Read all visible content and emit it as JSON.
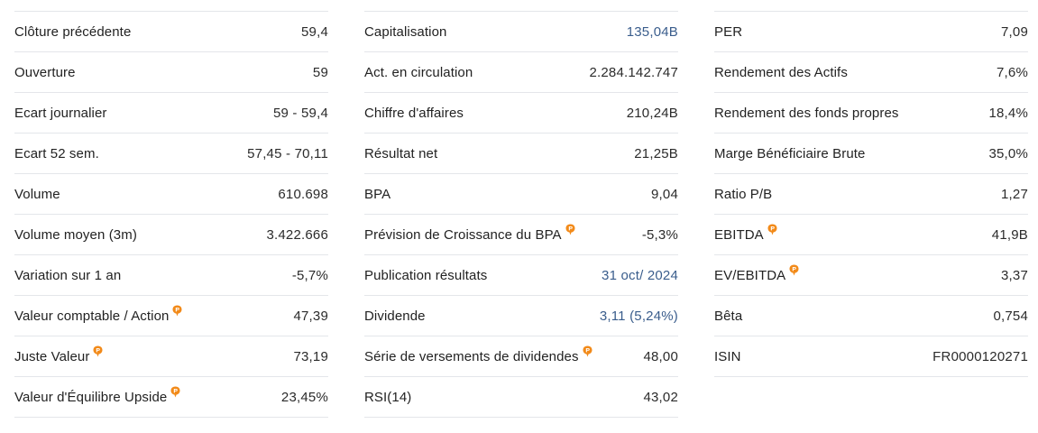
{
  "colors": {
    "pro_icon": "#f28a19",
    "link": "#3a5d8c",
    "divider": "#e4e6ea"
  },
  "columns": [
    {
      "rows": [
        {
          "label": "Clôture précédente",
          "value": "59,4",
          "pro": false,
          "link": false
        },
        {
          "label": "Ouverture",
          "value": "59",
          "pro": false,
          "link": false
        },
        {
          "label": "Ecart journalier",
          "value": "59 - 59,4",
          "pro": false,
          "link": false
        },
        {
          "label": "Ecart 52 sem.",
          "value": "57,45 - 70,11",
          "pro": false,
          "link": false
        },
        {
          "label": "Volume",
          "value": "610.698",
          "pro": false,
          "link": false
        },
        {
          "label": "Volume moyen (3m)",
          "value": "3.422.666",
          "pro": false,
          "link": false
        },
        {
          "label": "Variation sur 1 an",
          "value": "-5,7%",
          "pro": false,
          "link": false
        },
        {
          "label": "Valeur comptable / Action",
          "value": "47,39",
          "pro": true,
          "link": false
        },
        {
          "label": "Juste Valeur",
          "value": "73,19",
          "pro": true,
          "link": false
        },
        {
          "label": "Valeur d'Équilibre Upside",
          "value": "23,45%",
          "pro": true,
          "link": false
        }
      ]
    },
    {
      "rows": [
        {
          "label": "Capitalisation",
          "value": "135,04B",
          "pro": false,
          "link": true
        },
        {
          "label": "Act. en circulation",
          "value": "2.284.142.747",
          "pro": false,
          "link": false
        },
        {
          "label": "Chiffre d'affaires",
          "value": "210,24B",
          "pro": false,
          "link": false
        },
        {
          "label": "Résultat net",
          "value": "21,25B",
          "pro": false,
          "link": false
        },
        {
          "label": "BPA",
          "value": "9,04",
          "pro": false,
          "link": false
        },
        {
          "label": "Prévision de Croissance du BPA",
          "value": "-5,3%",
          "pro": true,
          "link": false
        },
        {
          "label": "Publication résultats",
          "value": "31 oct/ 2024",
          "pro": false,
          "link": true
        },
        {
          "label": "Dividende",
          "value": "3,11 (5,24%)",
          "pro": false,
          "link": true
        },
        {
          "label": "Série de versements de dividendes",
          "value": "48,00",
          "pro": true,
          "link": false
        },
        {
          "label": "RSI(14)",
          "value": "43,02",
          "pro": false,
          "link": false
        }
      ]
    },
    {
      "rows": [
        {
          "label": "PER",
          "value": "7,09",
          "pro": false,
          "link": false
        },
        {
          "label": "Rendement des Actifs",
          "value": "7,6%",
          "pro": false,
          "link": false
        },
        {
          "label": "Rendement des fonds propres",
          "value": "18,4%",
          "pro": false,
          "link": false
        },
        {
          "label": "Marge Bénéficiaire Brute",
          "value": "35,0%",
          "pro": false,
          "link": false
        },
        {
          "label": "Ratio P/B",
          "value": "1,27",
          "pro": false,
          "link": false
        },
        {
          "label": "EBITDA",
          "value": "41,9B",
          "pro": true,
          "link": false
        },
        {
          "label": "EV/EBITDA",
          "value": "3,37",
          "pro": true,
          "link": false
        },
        {
          "label": "Bêta",
          "value": "0,754",
          "pro": false,
          "link": false
        },
        {
          "label": "ISIN",
          "value": "FR0000120271",
          "pro": false,
          "link": false
        }
      ]
    }
  ]
}
